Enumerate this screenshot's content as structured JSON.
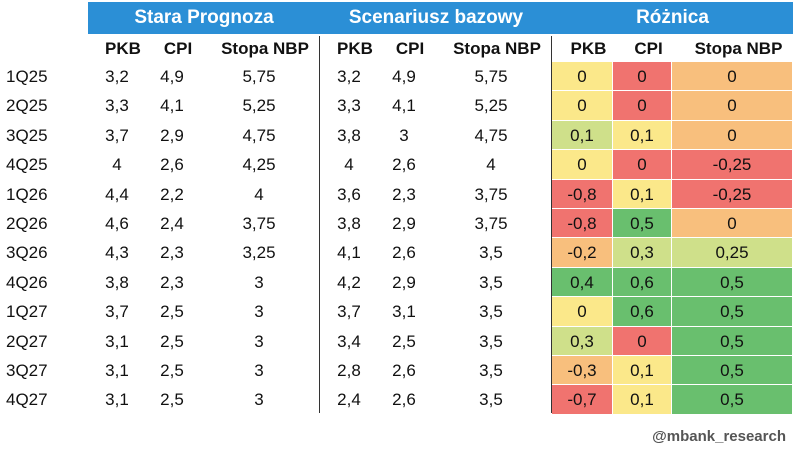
{
  "groups": {
    "old": "Stara Prognoza",
    "base": "Scenariusz bazowy",
    "diff": "Różnica"
  },
  "columns": {
    "pkb": "PKB",
    "cpi": "CPI",
    "rate": "Stopa NBP"
  },
  "colors": {
    "header_bg": "#2b8fd6",
    "red": "#f0736f",
    "orange": "#f8bf7d",
    "yellow": "#fbe88a",
    "light_green": "#cfe08a",
    "green": "#69bf6e"
  },
  "rows": [
    {
      "label": "1Q25",
      "old": [
        "3,2",
        "4,9",
        "5,75"
      ],
      "base": [
        "3,2",
        "4,9",
        "5,75"
      ],
      "diff": [
        "0",
        "0",
        "0"
      ],
      "diff_color": [
        "yellow",
        "red",
        "orange"
      ]
    },
    {
      "label": "2Q25",
      "old": [
        "3,3",
        "4,1",
        "5,25"
      ],
      "base": [
        "3,3",
        "4,1",
        "5,25"
      ],
      "diff": [
        "0",
        "0",
        "0"
      ],
      "diff_color": [
        "yellow",
        "red",
        "orange"
      ]
    },
    {
      "label": "3Q25",
      "old": [
        "3,7",
        "2,9",
        "4,75"
      ],
      "base": [
        "3,8",
        "3",
        "4,75"
      ],
      "diff": [
        "0,1",
        "0,1",
        "0"
      ],
      "diff_color": [
        "light_green",
        "yellow",
        "orange"
      ]
    },
    {
      "label": "4Q25",
      "old": [
        "4",
        "2,6",
        "4,25"
      ],
      "base": [
        "4",
        "2,6",
        "4"
      ],
      "diff": [
        "0",
        "0",
        "-0,25"
      ],
      "diff_color": [
        "yellow",
        "red",
        "red"
      ]
    },
    {
      "label": "1Q26",
      "old": [
        "4,4",
        "2,2",
        "4"
      ],
      "base": [
        "3,6",
        "2,3",
        "3,75"
      ],
      "diff": [
        "-0,8",
        "0,1",
        "-0,25"
      ],
      "diff_color": [
        "red",
        "yellow",
        "red"
      ]
    },
    {
      "label": "2Q26",
      "old": [
        "4,6",
        "2,4",
        "3,75"
      ],
      "base": [
        "3,8",
        "2,9",
        "3,75"
      ],
      "diff": [
        "-0,8",
        "0,5",
        "0"
      ],
      "diff_color": [
        "red",
        "green",
        "orange"
      ]
    },
    {
      "label": "3Q26",
      "old": [
        "4,3",
        "2,3",
        "3,25"
      ],
      "base": [
        "4,1",
        "2,6",
        "3,5"
      ],
      "diff": [
        "-0,2",
        "0,3",
        "0,25"
      ],
      "diff_color": [
        "orange",
        "light_green",
        "light_green"
      ]
    },
    {
      "label": "4Q26",
      "old": [
        "3,8",
        "2,3",
        "3"
      ],
      "base": [
        "4,2",
        "2,9",
        "3,5"
      ],
      "diff": [
        "0,4",
        "0,6",
        "0,5"
      ],
      "diff_color": [
        "green",
        "green",
        "green"
      ]
    },
    {
      "label": "1Q27",
      "old": [
        "3,7",
        "2,5",
        "3"
      ],
      "base": [
        "3,7",
        "3,1",
        "3,5"
      ],
      "diff": [
        "0",
        "0,6",
        "0,5"
      ],
      "diff_color": [
        "yellow",
        "green",
        "green"
      ]
    },
    {
      "label": "2Q27",
      "old": [
        "3,1",
        "2,5",
        "3"
      ],
      "base": [
        "3,4",
        "2,5",
        "3,5"
      ],
      "diff": [
        "0,3",
        "0",
        "0,5"
      ],
      "diff_color": [
        "light_green",
        "red",
        "green"
      ]
    },
    {
      "label": "3Q27",
      "old": [
        "3,1",
        "2,5",
        "3"
      ],
      "base": [
        "2,8",
        "2,6",
        "3,5"
      ],
      "diff": [
        "-0,3",
        "0,1",
        "0,5"
      ],
      "diff_color": [
        "orange",
        "yellow",
        "green"
      ]
    },
    {
      "label": "4Q27",
      "old": [
        "3,1",
        "2,5",
        "3"
      ],
      "base": [
        "2,4",
        "2,6",
        "3,5"
      ],
      "diff": [
        "-0,7",
        "0,1",
        "0,5"
      ],
      "diff_color": [
        "red",
        "yellow",
        "green"
      ]
    }
  ],
  "footer": "@mbank_research"
}
